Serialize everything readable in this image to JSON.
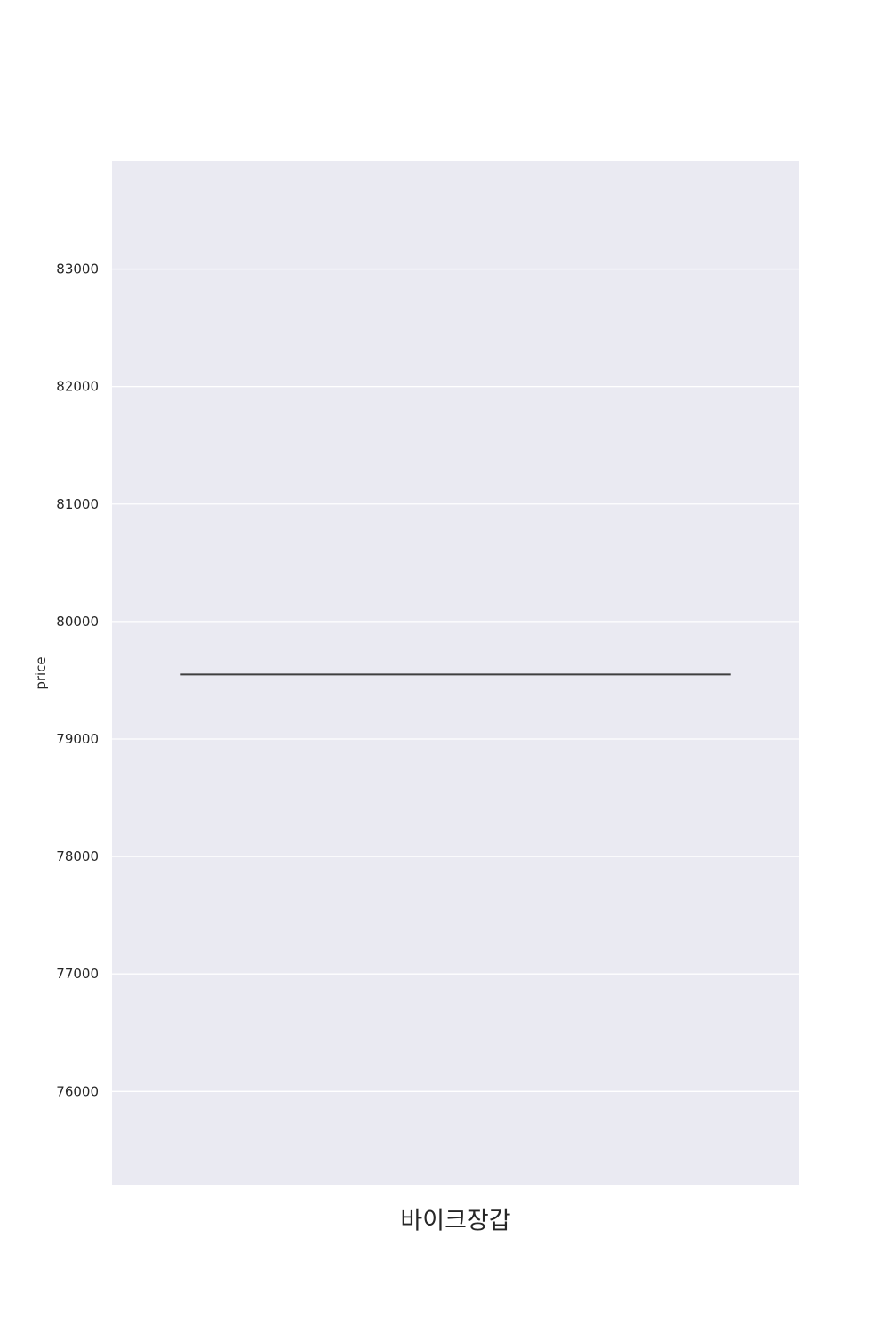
{
  "chart_data": {
    "type": "box",
    "title": "",
    "xlabel": "",
    "ylabel": "price",
    "categories": [
      "바이크장갑"
    ],
    "values": [
      79550
    ],
    "ylim": [
      75200,
      83920
    ],
    "yticks": [
      "76000",
      "77000",
      "78000",
      "79000",
      "80000",
      "81000",
      "82000",
      "83000"
    ],
    "grid": true,
    "background_color": "#EAEAF2",
    "grid_color": "#FFFFFF",
    "line_color": "#3F3F3F"
  }
}
